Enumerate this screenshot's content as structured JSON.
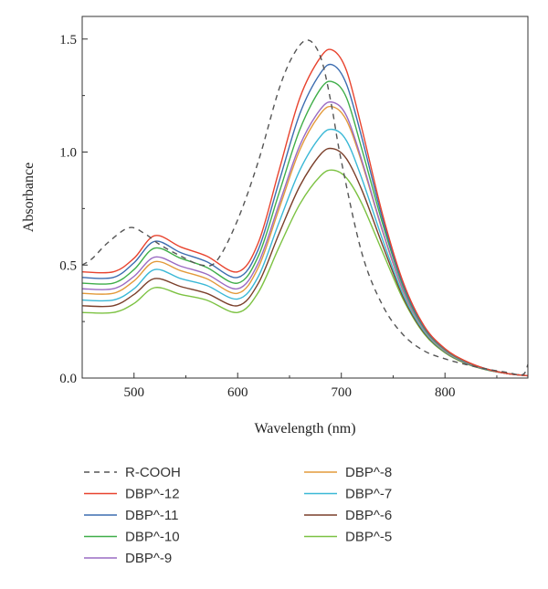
{
  "chart_data": {
    "type": "line",
    "title": "",
    "xlabel": "Wavelength (nm)",
    "ylabel": "Absorbance",
    "xlim": [
      450,
      880
    ],
    "ylim": [
      0,
      1.6
    ],
    "xticks": [
      500,
      600,
      700,
      800
    ],
    "yticks": [
      0.0,
      0.5,
      1.0,
      1.5
    ],
    "xtick_labels": [
      "500",
      "600",
      "700",
      "800"
    ],
    "ytick_labels": [
      "0.0",
      "0.5",
      "1.0",
      "1.5"
    ],
    "grid": false,
    "legend_position": "bottom",
    "series": [
      {
        "name": "R-COOH",
        "color": "#555555",
        "dashed": true,
        "x": [
          450,
          460,
          475,
          495,
          510,
          525,
          545,
          565,
          580,
          600,
          620,
          640,
          655,
          668,
          680,
          690,
          700,
          720,
          740,
          760,
          780,
          800,
          820,
          840,
          860,
          875,
          880
        ],
        "y": [
          0.5,
          0.53,
          0.6,
          0.665,
          0.64,
          0.59,
          0.54,
          0.5,
          0.52,
          0.7,
          0.96,
          1.28,
          1.44,
          1.495,
          1.42,
          1.22,
          0.96,
          0.55,
          0.32,
          0.19,
          0.12,
          0.085,
          0.06,
          0.04,
          0.025,
          0.015,
          0.06
        ]
      },
      {
        "name": "DBP^-12",
        "color": "#e8432e",
        "x": [
          450,
          480,
          500,
          520,
          545,
          570,
          600,
          620,
          640,
          660,
          680,
          692,
          705,
          720,
          740,
          760,
          780,
          800,
          820,
          840,
          860,
          880
        ],
        "y": [
          0.47,
          0.47,
          0.53,
          0.63,
          0.58,
          0.54,
          0.47,
          0.6,
          0.92,
          1.24,
          1.42,
          1.45,
          1.36,
          1.1,
          0.72,
          0.42,
          0.23,
          0.13,
          0.075,
          0.04,
          0.02,
          0.01
        ]
      },
      {
        "name": "DBP^-11",
        "color": "#3c6db0",
        "x": [
          450,
          480,
          500,
          520,
          545,
          570,
          600,
          620,
          640,
          660,
          680,
          692,
          705,
          720,
          740,
          760,
          780,
          800,
          820,
          840,
          860,
          880
        ],
        "y": [
          0.445,
          0.445,
          0.51,
          0.605,
          0.555,
          0.515,
          0.445,
          0.57,
          0.87,
          1.17,
          1.35,
          1.385,
          1.3,
          1.06,
          0.7,
          0.41,
          0.225,
          0.128,
          0.074,
          0.04,
          0.02,
          0.01
        ]
      },
      {
        "name": "DBP^-10",
        "color": "#3fae49",
        "x": [
          450,
          480,
          500,
          520,
          545,
          570,
          600,
          620,
          640,
          660,
          680,
          692,
          705,
          720,
          740,
          760,
          780,
          800,
          820,
          840,
          860,
          880
        ],
        "y": [
          0.42,
          0.42,
          0.48,
          0.575,
          0.53,
          0.49,
          0.42,
          0.54,
          0.82,
          1.1,
          1.28,
          1.31,
          1.24,
          1.01,
          0.68,
          0.4,
          0.22,
          0.125,
          0.072,
          0.04,
          0.02,
          0.01
        ]
      },
      {
        "name": "DBP^-9",
        "color": "#9a6bc3",
        "x": [
          450,
          480,
          500,
          520,
          545,
          570,
          600,
          620,
          640,
          660,
          680,
          692,
          705,
          720,
          740,
          760,
          780,
          800,
          820,
          840,
          860,
          880
        ],
        "y": [
          0.395,
          0.395,
          0.45,
          0.535,
          0.495,
          0.46,
          0.395,
          0.51,
          0.77,
          1.03,
          1.19,
          1.22,
          1.16,
          0.96,
          0.65,
          0.385,
          0.215,
          0.122,
          0.07,
          0.04,
          0.02,
          0.01
        ]
      },
      {
        "name": "DBP^-8",
        "color": "#e39a3a",
        "x": [
          450,
          480,
          500,
          520,
          545,
          570,
          600,
          620,
          640,
          660,
          680,
          692,
          705,
          720,
          740,
          760,
          780,
          800,
          820,
          840,
          860,
          880
        ],
        "y": [
          0.375,
          0.375,
          0.43,
          0.515,
          0.475,
          0.44,
          0.375,
          0.49,
          0.75,
          1.01,
          1.17,
          1.2,
          1.14,
          0.95,
          0.645,
          0.38,
          0.212,
          0.12,
          0.07,
          0.04,
          0.02,
          0.01
        ]
      },
      {
        "name": "DBP^-7",
        "color": "#3ab8d6",
        "x": [
          450,
          480,
          500,
          520,
          545,
          570,
          600,
          620,
          640,
          660,
          680,
          692,
          705,
          720,
          740,
          760,
          780,
          800,
          820,
          840,
          860,
          880
        ],
        "y": [
          0.345,
          0.345,
          0.395,
          0.48,
          0.44,
          0.41,
          0.35,
          0.45,
          0.69,
          0.92,
          1.07,
          1.1,
          1.05,
          0.88,
          0.61,
          0.365,
          0.205,
          0.117,
          0.068,
          0.038,
          0.02,
          0.01
        ]
      },
      {
        "name": "DBP^-6",
        "color": "#7a3f2a",
        "x": [
          450,
          480,
          500,
          520,
          545,
          570,
          600,
          620,
          640,
          660,
          680,
          692,
          705,
          720,
          740,
          760,
          780,
          800,
          820,
          840,
          860,
          880
        ],
        "y": [
          0.32,
          0.32,
          0.37,
          0.44,
          0.405,
          0.375,
          0.32,
          0.42,
          0.64,
          0.85,
          0.99,
          1.015,
          0.97,
          0.83,
          0.585,
          0.355,
          0.2,
          0.115,
          0.066,
          0.037,
          0.02,
          0.01
        ]
      },
      {
        "name": "DBP^-5",
        "color": "#7cc242",
        "x": [
          450,
          480,
          500,
          520,
          545,
          570,
          600,
          620,
          640,
          660,
          680,
          692,
          705,
          720,
          740,
          760,
          780,
          800,
          820,
          840,
          860,
          880
        ],
        "y": [
          0.29,
          0.29,
          0.33,
          0.4,
          0.37,
          0.345,
          0.29,
          0.38,
          0.58,
          0.77,
          0.895,
          0.92,
          0.885,
          0.77,
          0.555,
          0.345,
          0.195,
          0.112,
          0.064,
          0.036,
          0.02,
          0.01
        ]
      }
    ]
  }
}
